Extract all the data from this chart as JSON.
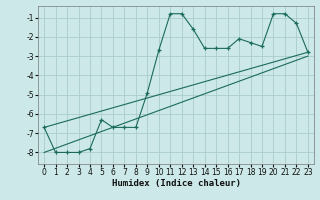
{
  "xlabel": "Humidex (Indice chaleur)",
  "bg_color": "#cce8e8",
  "grid_color": "#aacccc",
  "line_color": "#1a6b5a",
  "xlim": [
    -0.5,
    23.5
  ],
  "ylim": [
    -8.6,
    -0.4
  ],
  "yticks": [
    -8,
    -7,
    -6,
    -5,
    -4,
    -3,
    -2,
    -1
  ],
  "xticks": [
    0,
    1,
    2,
    3,
    4,
    5,
    6,
    7,
    8,
    9,
    10,
    11,
    12,
    13,
    14,
    15,
    16,
    17,
    18,
    19,
    20,
    21,
    22,
    23
  ],
  "series1_x": [
    0,
    1,
    2,
    3,
    4,
    5,
    6,
    7,
    8,
    9,
    10,
    11,
    12,
    13,
    14,
    15,
    16,
    17,
    18,
    19,
    20,
    21,
    22,
    23
  ],
  "series1_y": [
    -6.7,
    -8.0,
    -8.0,
    -8.0,
    -7.8,
    -6.3,
    -6.7,
    -6.7,
    -6.7,
    -4.9,
    -2.7,
    -0.8,
    -0.8,
    -1.6,
    -2.6,
    -2.6,
    -2.6,
    -2.1,
    -2.3,
    -2.5,
    -0.8,
    -0.8,
    -1.3,
    -2.8
  ],
  "trend1_x": [
    0,
    23
  ],
  "trend1_y": [
    -6.7,
    -2.8
  ],
  "trend2_x": [
    0,
    23
  ],
  "trend2_y": [
    -8.0,
    -3.0
  ]
}
